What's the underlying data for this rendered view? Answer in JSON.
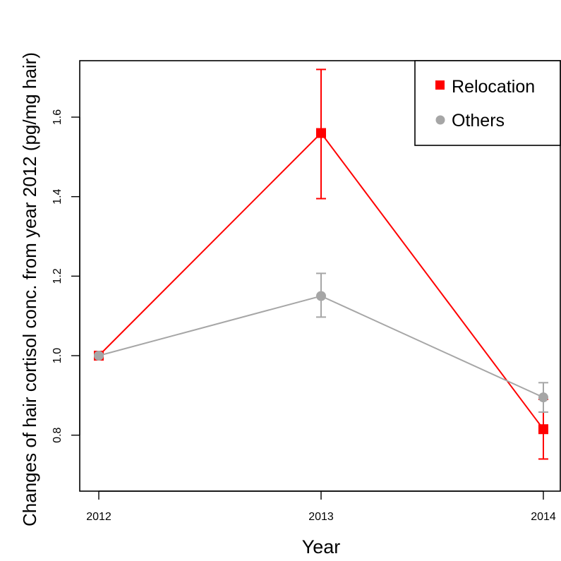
{
  "chart_data": {
    "type": "line",
    "title": "",
    "xlabel": "Year",
    "ylabel": "Changes of hair cortisol conc. from year 2012 (pg/mg hair)",
    "categories": [
      "2012",
      "2013",
      "2014"
    ],
    "ylim": [
      0.7,
      1.75
    ],
    "yticks": [
      "0.8",
      "1.0",
      "1.2",
      "1.4",
      "1.6"
    ],
    "grid": false,
    "legend_position": "top-right",
    "series": [
      {
        "name": "Relocation",
        "color": "#ff0000",
        "marker": "square",
        "values": [
          1.0,
          1.56,
          0.815
        ],
        "err_low": [
          1.0,
          1.395,
          0.74
        ],
        "err_high": [
          1.0,
          1.72,
          0.89
        ]
      },
      {
        "name": "Others",
        "color": "#a6a6a6",
        "marker": "circle",
        "values": [
          1.0,
          1.15,
          0.895
        ],
        "err_low": [
          1.0,
          1.097,
          0.858
        ],
        "err_high": [
          1.0,
          1.207,
          0.932
        ]
      }
    ]
  }
}
